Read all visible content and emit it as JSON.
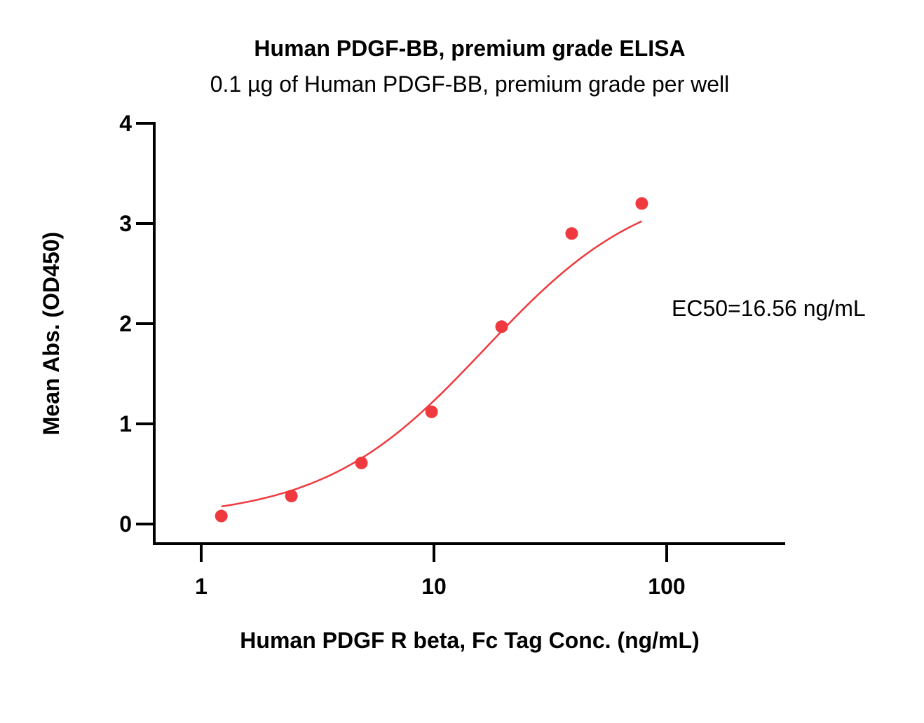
{
  "chart_data": {
    "type": "scatter",
    "title": "Human PDGF-BB, premium grade ELISA",
    "subtitle": "0.1 µg of Human PDGF-BB, premium grade per well",
    "xlabel": "Human PDGF R beta, Fc Tag Conc. (ng/mL)",
    "ylabel": "Mean Abs. (OD450)",
    "xscale": "log",
    "xlim": [
      0.5,
      300
    ],
    "ylim": [
      -0.2,
      4
    ],
    "xticks": [
      1,
      10,
      100
    ],
    "xtick_labels": [
      "1",
      "10",
      "100"
    ],
    "yticks": [
      0,
      1,
      2,
      3,
      4
    ],
    "ytick_labels": [
      "0",
      "1",
      "2",
      "3",
      "4"
    ],
    "grid": false,
    "legend": "none",
    "series": [
      {
        "x": [
          1.22,
          2.44,
          4.88,
          9.77,
          19.53,
          39.06,
          78.13
        ],
        "y": [
          0.08,
          0.28,
          0.61,
          1.12,
          1.97,
          2.9,
          3.2
        ],
        "color": "#f0393e"
      }
    ],
    "fit_curve": {
      "model": "4PL",
      "bottom": 0.05,
      "top": 3.45,
      "ec50": 16.56,
      "hill": 1.25,
      "x_range": [
        1.22,
        78.13
      ],
      "color": "#f0393e"
    },
    "annotations": [
      {
        "text": "EC50=16.56 ng/mL"
      }
    ]
  }
}
